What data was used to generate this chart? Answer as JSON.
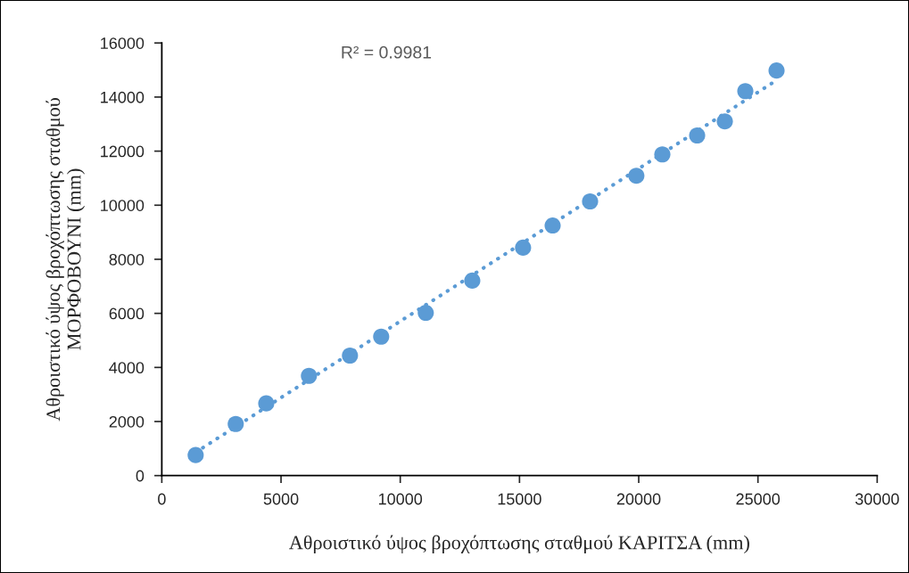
{
  "chart_data": {
    "type": "scatter",
    "xlabel": "Αθροιστικό ύψος βροχόπτωσης σταθμού ΚΑΡΙΤΣΑ (mm)",
    "ylabel": "Αθροιστικό ύψος βροχόπτωσης σταθμού\nΜΟΡΦΟΒΟΥΝΙ (mm)",
    "annotations": [
      "R² = 0.9981"
    ],
    "xlim": [
      0,
      30000
    ],
    "xticks": [
      0,
      5000,
      10000,
      15000,
      20000,
      25000,
      30000
    ],
    "ylim": [
      0,
      16000
    ],
    "yticks": [
      0,
      2000,
      4000,
      6000,
      8000,
      10000,
      12000,
      14000,
      16000
    ],
    "grid": false,
    "legend": false,
    "marker": "circle",
    "series": [
      {
        "color": "#5b9bd5",
        "x": [
          1420,
          3100,
          4380,
          6170,
          7890,
          9200,
          11070,
          13020,
          15150,
          16390,
          17960,
          19900,
          20990,
          22450,
          23610,
          24470,
          25780
        ],
        "values": [
          760,
          1910,
          2670,
          3690,
          4440,
          5140,
          6020,
          7210,
          8430,
          9250,
          10140,
          11090,
          11880,
          12580,
          13100,
          14220,
          14980
        ]
      },
      {
        "type": "line",
        "color": "#5b9bd5",
        "line_style": "dotted",
        "marker": "none",
        "x": [
          1420,
          25780
        ],
        "values": [
          860,
          14620
        ]
      }
    ]
  }
}
